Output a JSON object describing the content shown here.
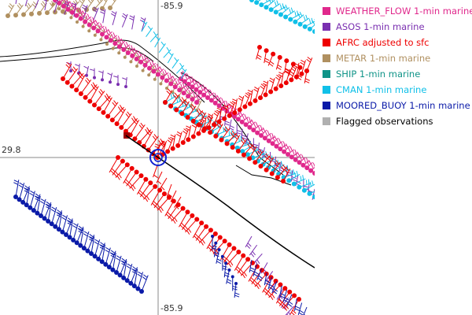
{
  "map": {
    "lon_top_label": "-85.9",
    "lon_bottom_label": "-85.9",
    "lat_left_label": "29.8"
  },
  "legend": {
    "items": [
      {
        "key": "weather-flow",
        "label": "WEATHER_FLOW 1-min marine",
        "color": "#e0288c"
      },
      {
        "key": "asos",
        "label": "ASOS 1-min marine",
        "color": "#7a2fb0"
      },
      {
        "key": "afrc",
        "label": "AFRC adjusted to sfc",
        "color": "#ee0000"
      },
      {
        "key": "metar",
        "label": "METAR 1-min marine",
        "color": "#b09060"
      },
      {
        "key": "ship",
        "label": "SHIP 1-min marine",
        "color": "#109488"
      },
      {
        "key": "cman",
        "label": "CMAN 1-min marine",
        "color": "#10c0e8"
      },
      {
        "key": "moored-buoy",
        "label": "MOORED_BUOY 1-min marine",
        "color": "#0a1aa8"
      },
      {
        "key": "flagged",
        "label": "Flagged observations",
        "color": "#b0b0b0"
      }
    ]
  }
}
